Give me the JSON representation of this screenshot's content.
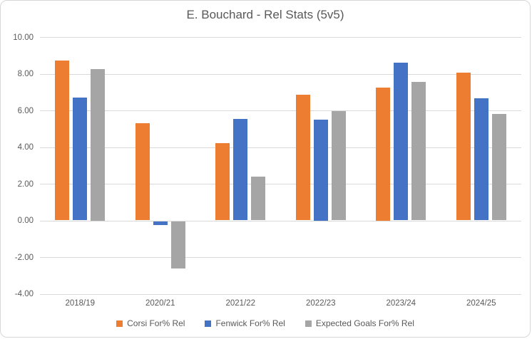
{
  "chart_data": {
    "type": "bar",
    "title": "E. Bouchard - Rel Stats (5v5)",
    "categories": [
      "2018/19",
      "2020/21",
      "2021/22",
      "2022/23",
      "2023/24",
      "2024/25"
    ],
    "series": [
      {
        "name": "Corsi For% Rel",
        "color": "#ED7D31",
        "values": [
          8.7,
          5.3,
          4.2,
          6.85,
          7.25,
          8.05
        ]
      },
      {
        "name": "Fenwick For% Rel",
        "color": "#4472C4",
        "values": [
          6.7,
          -0.2,
          5.55,
          5.5,
          8.6,
          6.65
        ]
      },
      {
        "name": "Expected Goals For% Rel",
        "color": "#A5A5A5",
        "values": [
          8.25,
          -2.6,
          2.4,
          5.95,
          7.55,
          5.8
        ]
      }
    ],
    "ylim": [
      -4,
      10
    ],
    "ytick_step": 2,
    "ytick_labels": [
      "10.00",
      "8.00",
      "6.00",
      "4.00",
      "2.00",
      "0.00",
      "-2.00",
      "-4.00"
    ],
    "xlabel": "",
    "ylabel": "",
    "grid": true,
    "legend_position": "bottom",
    "colors": {
      "text": "#595959",
      "gridline": "#D9D9D9",
      "frame_border": "#D7D7D7",
      "background": "#FFFFFF"
    }
  }
}
